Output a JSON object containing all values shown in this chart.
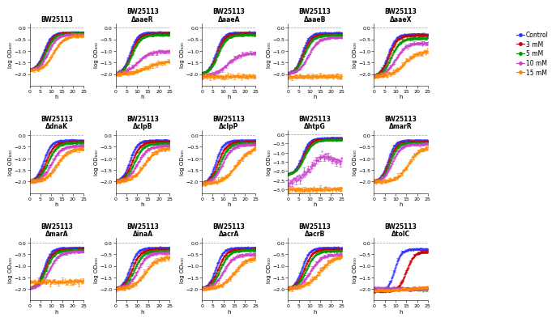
{
  "subplots": [
    {
      "title1": "BW25113",
      "title2": ""
    },
    {
      "title1": "BW25113",
      "title2": "ΔaaeR"
    },
    {
      "title1": "BW25113",
      "title2": "ΔaaeA"
    },
    {
      "title1": "BW25113",
      "title2": "ΔaaeB"
    },
    {
      "title1": "BW25113",
      "title2": "ΔaaeX"
    },
    {
      "title1": "BW25113",
      "title2": "ΔdnaK"
    },
    {
      "title1": "BW25113",
      "title2": "ΔclpB"
    },
    {
      "title1": "BW25113",
      "title2": "ΔclpP"
    },
    {
      "title1": "BW25113",
      "title2": "ΔhtpG"
    },
    {
      "title1": "BW25113",
      "title2": "ΔmarR"
    },
    {
      "title1": "BW25113",
      "title2": "ΔmarA"
    },
    {
      "title1": "BW25113",
      "title2": "ΔinaA"
    },
    {
      "title1": "BW25113",
      "title2": "ΔacrA"
    },
    {
      "title1": "BW25113",
      "title2": "ΔacrB"
    },
    {
      "title1": "BW25113",
      "title2": "ΔtolC"
    }
  ],
  "colors": [
    "#3333ff",
    "#cc0000",
    "#009900",
    "#cc44cc",
    "#ff8800"
  ],
  "legend_labels": [
    "Control",
    "3 mM",
    "5 mM",
    "10 mM",
    "15 mM"
  ],
  "xlabel": "h",
  "ylabel": "log OD₆₀₀",
  "xlim": [
    0,
    25
  ],
  "xticks": [
    0,
    5,
    10,
    15,
    20,
    25
  ],
  "background_color": "#ffffff",
  "title_fontsize": 5.5,
  "tick_fontsize": 4.5,
  "label_fontsize": 5.0,
  "legend_fontsize": 5.5
}
